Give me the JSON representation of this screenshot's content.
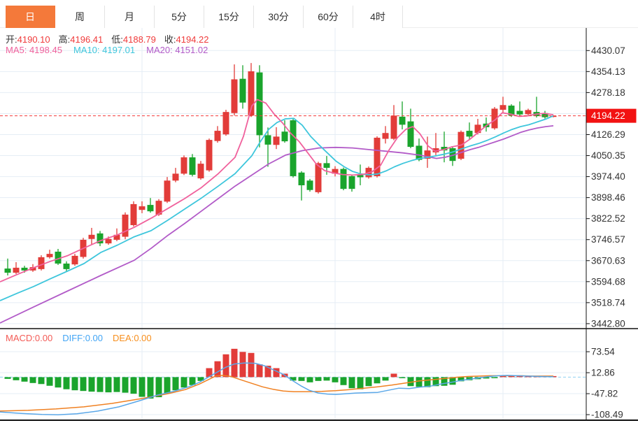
{
  "tabs": {
    "items": [
      {
        "label": "日",
        "active": true
      },
      {
        "label": "周",
        "active": false
      },
      {
        "label": "月",
        "active": false
      },
      {
        "label": "5分",
        "active": false
      },
      {
        "label": "15分",
        "active": false
      },
      {
        "label": "30分",
        "active": false
      },
      {
        "label": "60分",
        "active": false
      },
      {
        "label": "4时",
        "active": false
      }
    ]
  },
  "main_chart": {
    "ohlc": {
      "open_label": "开:",
      "open": "4190.10",
      "high_label": "高:",
      "high": "4196.41",
      "low_label": "低:",
      "low": "4188.79",
      "close_label": "收:",
      "close": "4194.22"
    },
    "ma": {
      "ma5": "MA5: 4198.45",
      "ma10": "MA10: 4197.01",
      "ma20": "MA20: 4151.02"
    },
    "price_tag": "4194.22"
  },
  "macd_panel": {
    "macd": "MACD:0.00",
    "diff": "DIFF:0.00",
    "dea": "DEA:0.00"
  },
  "colors": {
    "up": "#e23c39",
    "down": "#1aa42c",
    "ma5": "#f0619c",
    "ma10": "#3ec6dc",
    "ma20": "#b25bc8",
    "dif": "#5aa7e8",
    "dea": "#f08122",
    "grid": "#e5edf5",
    "price_dash": "#f43b3b",
    "zero_dash": "#8ed1f0",
    "tag_bg": "#f21212",
    "tag_text": "#ffffff",
    "axis_text": "#333333",
    "frame": "#111111",
    "tab_active_bg": "#f4793a",
    "label_macd": "#f35b56",
    "label_diff": "#42a5f5",
    "label_dea": "#f78f1e",
    "ohlc_value": "#f03a3a",
    "ohlc_label": "#333333"
  },
  "chart_data": {
    "type": "candlestick",
    "panes": [
      "price",
      "macd"
    ],
    "y_axis": {
      "max": 4430.07,
      "min": 3442.8,
      "ticks": [
        4430.07,
        4354.13,
        4278.18,
        4202.24,
        4126.29,
        4050.35,
        3974.4,
        3898.46,
        3822.52,
        3746.57,
        3670.63,
        3594.68,
        3518.74,
        3442.8
      ],
      "hidden_tick": 4202.24
    },
    "last_price": 4194.22,
    "vertical_gridlines": [
      203,
      479,
      719
    ],
    "candles": [
      [
        3642,
        3678,
        3617,
        3627
      ],
      [
        3627,
        3665,
        3622,
        3645
      ],
      [
        3645,
        3652,
        3627,
        3635
      ],
      [
        3635,
        3658,
        3630,
        3647
      ],
      [
        3640,
        3690,
        3635,
        3683
      ],
      [
        3683,
        3710,
        3678,
        3695
      ],
      [
        3703,
        3713,
        3655,
        3660
      ],
      [
        3660,
        3668,
        3630,
        3640
      ],
      [
        3657,
        3695,
        3652,
        3688
      ],
      [
        3684,
        3753,
        3678,
        3746
      ],
      [
        3749,
        3789,
        3728,
        3764
      ],
      [
        3769,
        3778,
        3723,
        3733
      ],
      [
        3733,
        3758,
        3728,
        3749
      ],
      [
        3746,
        3787,
        3741,
        3764
      ],
      [
        3757,
        3845,
        3748,
        3837
      ],
      [
        3799,
        3885,
        3794,
        3875
      ],
      [
        3854,
        3885,
        3842,
        3867
      ],
      [
        3872,
        3897,
        3844,
        3849
      ],
      [
        3837,
        3893,
        3832,
        3887
      ],
      [
        3884,
        3973,
        3879,
        3960
      ],
      [
        3960,
        4006,
        3954,
        3985
      ],
      [
        3985,
        4051,
        3980,
        4044
      ],
      [
        4044,
        4056,
        3975,
        3981
      ],
      [
        3968,
        4031,
        3963,
        4021
      ],
      [
        3997,
        4112,
        3992,
        4107
      ],
      [
        4103,
        4157,
        4097,
        4140
      ],
      [
        4127,
        4216,
        4122,
        4208
      ],
      [
        4204,
        4380,
        4195,
        4326
      ],
      [
        4328,
        4377,
        4220,
        4242
      ],
      [
        4195,
        4385,
        4190,
        4355
      ],
      [
        4351,
        4377,
        4080,
        4124
      ],
      [
        4124,
        4152,
        4010,
        4090
      ],
      [
        4089,
        4153,
        4074,
        4119
      ],
      [
        4137,
        4178,
        4097,
        4102
      ],
      [
        4178,
        4186,
        3971,
        3976
      ],
      [
        3989,
        3994,
        3888,
        3943
      ],
      [
        3960,
        3966,
        3920,
        3926
      ],
      [
        3918,
        4028,
        3913,
        4023
      ],
      [
        4023,
        4049,
        3981,
        4006
      ],
      [
        3985,
        4012,
        3975,
        4002
      ],
      [
        4002,
        4007,
        3925,
        3930
      ],
      [
        3976,
        3981,
        3920,
        3930
      ],
      [
        3980,
        4018,
        3943,
        3972
      ],
      [
        3972,
        4011,
        3967,
        4006
      ],
      [
        3976,
        4120,
        3971,
        4115
      ],
      [
        4111,
        4157,
        4094,
        4132
      ],
      [
        4111,
        4233,
        4106,
        4195
      ],
      [
        4191,
        4246,
        4145,
        4162
      ],
      [
        4174,
        4220,
        4077,
        4082
      ],
      [
        4086,
        4112,
        4030,
        4035
      ],
      [
        4039,
        4119,
        4006,
        4069
      ],
      [
        4062,
        4132,
        4052,
        4077
      ],
      [
        4082,
        4137,
        4026,
        4069
      ],
      [
        4077,
        4082,
        4013,
        4031
      ],
      [
        4039,
        4141,
        4034,
        4136
      ],
      [
        4140,
        4170,
        4107,
        4119
      ],
      [
        4132,
        4183,
        4127,
        4162
      ],
      [
        4166,
        4188,
        4137,
        4153
      ],
      [
        4149,
        4226,
        4144,
        4220
      ],
      [
        4216,
        4263,
        4203,
        4233
      ],
      [
        4231,
        4236,
        4190,
        4195
      ],
      [
        4212,
        4246,
        4194,
        4199
      ],
      [
        4200,
        4220,
        4195,
        4215
      ],
      [
        4208,
        4263,
        4188,
        4193
      ],
      [
        4204,
        4212,
        4184,
        4189
      ],
      [
        4190.1,
        4196.41,
        4188.79,
        4194.22
      ]
    ],
    "ma5": [
      [
        0,
        3594
      ],
      [
        24,
        3620
      ],
      [
        48,
        3645
      ],
      [
        72,
        3668
      ],
      [
        96,
        3688
      ],
      [
        120,
        3716
      ],
      [
        144,
        3743
      ],
      [
        168,
        3764
      ],
      [
        192,
        3791
      ],
      [
        216,
        3824
      ],
      [
        240,
        3859
      ],
      [
        264,
        3895
      ],
      [
        288,
        3935
      ],
      [
        312,
        3985
      ],
      [
        336,
        4044
      ],
      [
        348,
        4120
      ],
      [
        360,
        4230
      ],
      [
        368,
        4253
      ],
      [
        380,
        4240
      ],
      [
        392,
        4200
      ],
      [
        404,
        4168
      ],
      [
        416,
        4130
      ],
      [
        428,
        4100
      ],
      [
        440,
        4060
      ],
      [
        452,
        4020
      ],
      [
        464,
        3996
      ],
      [
        476,
        3988
      ],
      [
        490,
        3982
      ],
      [
        505,
        3980
      ],
      [
        520,
        3983
      ],
      [
        532,
        3992
      ],
      [
        544,
        4015
      ],
      [
        556,
        4070
      ],
      [
        568,
        4115
      ],
      [
        580,
        4145
      ],
      [
        590,
        4155
      ],
      [
        600,
        4130
      ],
      [
        612,
        4085
      ],
      [
        622,
        4066
      ],
      [
        634,
        4072
      ],
      [
        646,
        4082
      ],
      [
        660,
        4089
      ],
      [
        672,
        4110
      ],
      [
        684,
        4135
      ],
      [
        696,
        4160
      ],
      [
        708,
        4180
      ],
      [
        718,
        4205
      ],
      [
        730,
        4200
      ],
      [
        742,
        4192
      ],
      [
        754,
        4194
      ],
      [
        766,
        4200
      ],
      [
        778,
        4203
      ],
      [
        791,
        4198
      ]
    ],
    "ma10": [
      [
        0,
        3526
      ],
      [
        24,
        3552
      ],
      [
        48,
        3577
      ],
      [
        72,
        3605
      ],
      [
        96,
        3632
      ],
      [
        120,
        3660
      ],
      [
        144,
        3700
      ],
      [
        168,
        3727
      ],
      [
        192,
        3757
      ],
      [
        216,
        3779
      ],
      [
        240,
        3817
      ],
      [
        264,
        3857
      ],
      [
        288,
        3897
      ],
      [
        312,
        3940
      ],
      [
        336,
        3985
      ],
      [
        360,
        4050
      ],
      [
        372,
        4100
      ],
      [
        384,
        4145
      ],
      [
        396,
        4170
      ],
      [
        408,
        4183
      ],
      [
        420,
        4185
      ],
      [
        432,
        4160
      ],
      [
        444,
        4120
      ],
      [
        456,
        4089
      ],
      [
        468,
        4060
      ],
      [
        480,
        4031
      ],
      [
        492,
        4010
      ],
      [
        504,
        3993
      ],
      [
        516,
        3984
      ],
      [
        528,
        3981
      ],
      [
        540,
        3984
      ],
      [
        552,
        3995
      ],
      [
        564,
        4010
      ],
      [
        576,
        4022
      ],
      [
        588,
        4032
      ],
      [
        600,
        4040
      ],
      [
        612,
        4044
      ],
      [
        624,
        4050
      ],
      [
        636,
        4056
      ],
      [
        648,
        4064
      ],
      [
        660,
        4075
      ],
      [
        672,
        4085
      ],
      [
        684,
        4094
      ],
      [
        696,
        4105
      ],
      [
        708,
        4118
      ],
      [
        720,
        4132
      ],
      [
        732,
        4145
      ],
      [
        744,
        4155
      ],
      [
        756,
        4162
      ],
      [
        768,
        4172
      ],
      [
        780,
        4182
      ],
      [
        791,
        4194
      ]
    ],
    "ma20": [
      [
        0,
        3445
      ],
      [
        48,
        3503
      ],
      [
        96,
        3560
      ],
      [
        144,
        3617
      ],
      [
        192,
        3672
      ],
      [
        216,
        3715
      ],
      [
        240,
        3762
      ],
      [
        264,
        3805
      ],
      [
        288,
        3850
      ],
      [
        312,
        3895
      ],
      [
        336,
        3940
      ],
      [
        360,
        3980
      ],
      [
        384,
        4020
      ],
      [
        408,
        4052
      ],
      [
        432,
        4068
      ],
      [
        456,
        4078
      ],
      [
        480,
        4080
      ],
      [
        504,
        4078
      ],
      [
        528,
        4072
      ],
      [
        552,
        4066
      ],
      [
        576,
        4060
      ],
      [
        600,
        4052
      ],
      [
        612,
        4046
      ],
      [
        624,
        4040
      ],
      [
        636,
        4044
      ],
      [
        648,
        4052
      ],
      [
        660,
        4062
      ],
      [
        672,
        4072
      ],
      [
        684,
        4080
      ],
      [
        696,
        4090
      ],
      [
        708,
        4100
      ],
      [
        720,
        4110
      ],
      [
        732,
        4122
      ],
      [
        744,
        4134
      ],
      [
        756,
        4143
      ],
      [
        768,
        4150
      ],
      [
        780,
        4155
      ],
      [
        791,
        4158
      ]
    ],
    "macd": {
      "ticks": [
        73.54,
        12.86,
        -47.82,
        -108.49
      ],
      "histogram": [
        -5,
        -9,
        -13,
        -17,
        -20,
        -25,
        -30,
        -35,
        -38,
        -40,
        -42,
        -43,
        -44,
        -43,
        -45,
        -48,
        -57,
        -62,
        -58,
        -48,
        -38,
        -30,
        -23,
        -11,
        26,
        46,
        66,
        82,
        73,
        70,
        37,
        33,
        26,
        10,
        -10,
        -11,
        -15,
        -11,
        -10,
        -15,
        -23,
        -32,
        -35,
        -26,
        -18,
        -10,
        10,
        -3,
        -26,
        -28,
        -29,
        -26,
        -25,
        -22,
        -12,
        -9,
        -6,
        -4,
        -2,
        2,
        1,
        1,
        2,
        2,
        1,
        2
      ],
      "dif": [
        [
          0,
          -101
        ],
        [
          30,
          -105
        ],
        [
          60,
          -108
        ],
        [
          83,
          -109
        ],
        [
          110,
          -106
        ],
        [
          140,
          -98
        ],
        [
          170,
          -86
        ],
        [
          200,
          -68
        ],
        [
          225,
          -52
        ],
        [
          250,
          -40
        ],
        [
          270,
          -28
        ],
        [
          285,
          -15
        ],
        [
          298,
          0
        ],
        [
          310,
          14
        ],
        [
          322,
          28
        ],
        [
          335,
          38
        ],
        [
          350,
          41
        ],
        [
          365,
          40
        ],
        [
          378,
          33
        ],
        [
          392,
          20
        ],
        [
          405,
          8
        ],
        [
          418,
          -10
        ],
        [
          430,
          -25
        ],
        [
          442,
          -38
        ],
        [
          455,
          -46
        ],
        [
          468,
          -49
        ],
        [
          480,
          -50
        ],
        [
          495,
          -48
        ],
        [
          510,
          -46
        ],
        [
          525,
          -45
        ],
        [
          540,
          -44
        ],
        [
          555,
          -38
        ],
        [
          570,
          -32
        ],
        [
          585,
          -33
        ],
        [
          600,
          -29
        ],
        [
          615,
          -26
        ],
        [
          630,
          -20
        ],
        [
          645,
          -15
        ],
        [
          658,
          -10
        ],
        [
          672,
          -6
        ],
        [
          685,
          -2
        ],
        [
          700,
          2
        ],
        [
          712,
          4
        ],
        [
          725,
          5
        ],
        [
          740,
          4
        ],
        [
          755,
          3
        ],
        [
          770,
          2
        ],
        [
          791,
          1
        ]
      ],
      "dea": [
        [
          0,
          -98
        ],
        [
          40,
          -96
        ],
        [
          80,
          -92
        ],
        [
          120,
          -86
        ],
        [
          160,
          -76
        ],
        [
          200,
          -63
        ],
        [
          240,
          -48
        ],
        [
          265,
          -36
        ],
        [
          285,
          -20
        ],
        [
          300,
          -5
        ],
        [
          308,
          3
        ],
        [
          318,
          5
        ],
        [
          330,
          2
        ],
        [
          345,
          -8
        ],
        [
          360,
          -18
        ],
        [
          375,
          -28
        ],
        [
          390,
          -35
        ],
        [
          405,
          -40
        ],
        [
          420,
          -42
        ],
        [
          440,
          -42
        ],
        [
          460,
          -41
        ],
        [
          480,
          -39
        ],
        [
          500,
          -36
        ],
        [
          520,
          -32
        ],
        [
          540,
          -28
        ],
        [
          560,
          -23
        ],
        [
          580,
          -17
        ],
        [
          600,
          -11
        ],
        [
          620,
          -7
        ],
        [
          640,
          -3
        ],
        [
          655,
          0
        ],
        [
          670,
          2
        ],
        [
          685,
          3
        ],
        [
          700,
          4
        ],
        [
          715,
          4
        ],
        [
          730,
          4
        ],
        [
          745,
          4
        ],
        [
          760,
          3
        ],
        [
          775,
          3
        ],
        [
          791,
          3
        ]
      ]
    }
  }
}
